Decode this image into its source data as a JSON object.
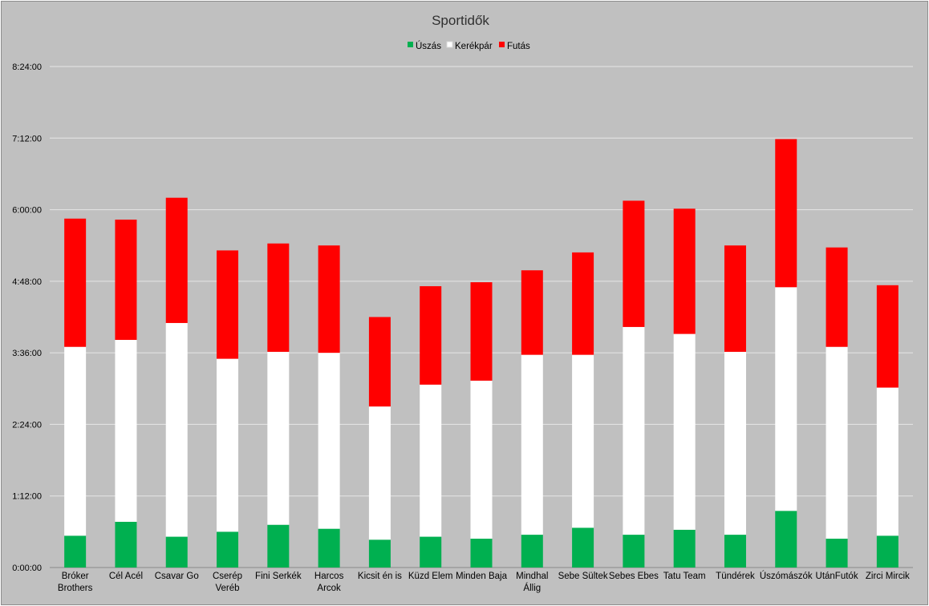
{
  "chart_data": {
    "type": "bar",
    "stacked": true,
    "title": "Sportidők",
    "legend_position": "top",
    "grid": true,
    "y_unit": "h:mm:ss",
    "ylim": [
      "0:00:00",
      "8:24:00"
    ],
    "y_ticks": [
      "0:00:00",
      "1:12:00",
      "2:24:00",
      "3:36:00",
      "4:48:00",
      "6:00:00",
      "7:12:00",
      "8:24:00"
    ],
    "categories": [
      [
        "Bróker",
        "Brothers"
      ],
      [
        "Cél Acél"
      ],
      [
        "Csavar Go"
      ],
      [
        "Cserép",
        "Veréb"
      ],
      [
        "Fini Serkék"
      ],
      [
        "Harcos",
        "Arcok"
      ],
      [
        "Kicsit én is"
      ],
      [
        "Küzd Elem"
      ],
      [
        "Minden Baja"
      ],
      [
        "Mindhal",
        "Állig"
      ],
      [
        "Sebe Sültek"
      ],
      [
        "Sebes Ebes"
      ],
      [
        "Tatu Team"
      ],
      [
        "Tündérek"
      ],
      [
        "Úszómászók"
      ],
      [
        "UtánFutók"
      ],
      [
        "Zirci Mircik"
      ]
    ],
    "series": [
      {
        "name": "Úszás",
        "color": "#00b050",
        "values": [
          "0:32:00",
          "0:46:00",
          "0:31:00",
          "0:36:00",
          "0:43:00",
          "0:39:00",
          "0:28:00",
          "0:31:00",
          "0:29:00",
          "0:33:00",
          "0:40:00",
          "0:33:00",
          "0:38:00",
          "0:33:00",
          "0:57:00",
          "0:29:00",
          "0:32:00"
        ]
      },
      {
        "name": "Kerékpár",
        "color": "#ffffff",
        "values": [
          "3:10:00",
          "3:03:00",
          "3:35:00",
          "2:54:00",
          "2:54:00",
          "2:57:00",
          "2:14:00",
          "2:33:00",
          "2:39:00",
          "3:01:00",
          "2:54:00",
          "3:29:00",
          "3:17:00",
          "3:04:00",
          "3:45:00",
          "3:13:00",
          "2:29:00"
        ]
      },
      {
        "name": "Futás",
        "color": "#ff0000",
        "values": [
          "2:09:00",
          "2:01:00",
          "2:06:00",
          "1:49:00",
          "1:49:00",
          "1:48:00",
          "1:30:00",
          "1:39:00",
          "1:39:00",
          "1:25:00",
          "1:43:00",
          "2:07:00",
          "2:06:00",
          "1:47:00",
          "2:29:00",
          "1:40:00",
          "1:43:00"
        ]
      }
    ]
  }
}
